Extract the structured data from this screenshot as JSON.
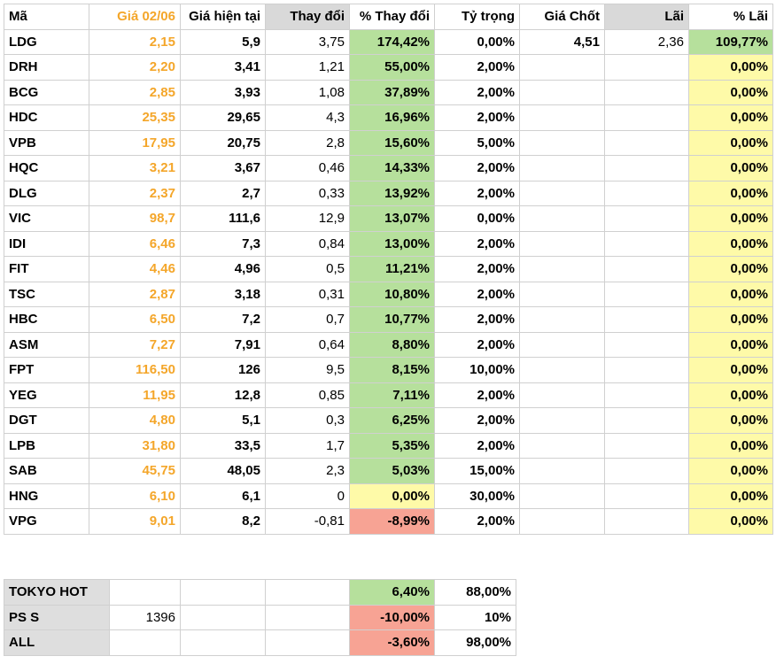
{
  "colors": {
    "orange": "#f4a62a",
    "green": "#b6e09c",
    "yellow": "#fefaa8",
    "red": "#f7a394",
    "gray": "#d9d9d9"
  },
  "headers": [
    "Mã",
    "Giá 02/06",
    "Giá hiện tại",
    "Thay đổi",
    "% Thay đổi",
    "Tỷ trọng",
    "Giá Chốt",
    "Lãi",
    "% Lãi"
  ],
  "rows": [
    {
      "ma": "LDG",
      "gia": "2,15",
      "hientai": "5,9",
      "thaydoi": "3,75",
      "pct": "174,42%",
      "tytrong": "0,00%",
      "chot": "4,51",
      "lai": "2,36",
      "pctlai": "109,77%",
      "pct_color": "green",
      "lai_color": "green"
    },
    {
      "ma": "DRH",
      "gia": "2,20",
      "hientai": "3,41",
      "thaydoi": "1,21",
      "pct": "55,00%",
      "tytrong": "2,00%",
      "chot": "",
      "lai": "",
      "pctlai": "0,00%",
      "pct_color": "green",
      "lai_color": "yellow"
    },
    {
      "ma": "BCG",
      "gia": "2,85",
      "hientai": "3,93",
      "thaydoi": "1,08",
      "pct": "37,89%",
      "tytrong": "2,00%",
      "chot": "",
      "lai": "",
      "pctlai": "0,00%",
      "pct_color": "green",
      "lai_color": "yellow"
    },
    {
      "ma": "HDC",
      "gia": "25,35",
      "hientai": "29,65",
      "thaydoi": "4,3",
      "pct": "16,96%",
      "tytrong": "2,00%",
      "chot": "",
      "lai": "",
      "pctlai": "0,00%",
      "pct_color": "green",
      "lai_color": "yellow"
    },
    {
      "ma": "VPB",
      "gia": "17,95",
      "hientai": "20,75",
      "thaydoi": "2,8",
      "pct": "15,60%",
      "tytrong": "5,00%",
      "chot": "",
      "lai": "",
      "pctlai": "0,00%",
      "pct_color": "green",
      "lai_color": "yellow"
    },
    {
      "ma": "HQC",
      "gia": "3,21",
      "hientai": "3,67",
      "thaydoi": "0,46",
      "pct": "14,33%",
      "tytrong": "2,00%",
      "chot": "",
      "lai": "",
      "pctlai": "0,00%",
      "pct_color": "green",
      "lai_color": "yellow"
    },
    {
      "ma": "DLG",
      "gia": "2,37",
      "hientai": "2,7",
      "thaydoi": "0,33",
      "pct": "13,92%",
      "tytrong": "2,00%",
      "chot": "",
      "lai": "",
      "pctlai": "0,00%",
      "pct_color": "green",
      "lai_color": "yellow"
    },
    {
      "ma": "VIC",
      "gia": "98,7",
      "hientai": "111,6",
      "thaydoi": "12,9",
      "pct": "13,07%",
      "tytrong": "0,00%",
      "chot": "",
      "lai": "",
      "pctlai": "0,00%",
      "pct_color": "green",
      "lai_color": "yellow"
    },
    {
      "ma": "IDI",
      "gia": "6,46",
      "hientai": "7,3",
      "thaydoi": "0,84",
      "pct": "13,00%",
      "tytrong": "2,00%",
      "chot": "",
      "lai": "",
      "pctlai": "0,00%",
      "pct_color": "green",
      "lai_color": "yellow"
    },
    {
      "ma": "FIT",
      "gia": "4,46",
      "hientai": "4,96",
      "thaydoi": "0,5",
      "pct": "11,21%",
      "tytrong": "2,00%",
      "chot": "",
      "lai": "",
      "pctlai": "0,00%",
      "pct_color": "green",
      "lai_color": "yellow"
    },
    {
      "ma": "TSC",
      "gia": "2,87",
      "hientai": "3,18",
      "thaydoi": "0,31",
      "pct": "10,80%",
      "tytrong": "2,00%",
      "chot": "",
      "lai": "",
      "pctlai": "0,00%",
      "pct_color": "green",
      "lai_color": "yellow"
    },
    {
      "ma": "HBC",
      "gia": "6,50",
      "hientai": "7,2",
      "thaydoi": "0,7",
      "pct": "10,77%",
      "tytrong": "2,00%",
      "chot": "",
      "lai": "",
      "pctlai": "0,00%",
      "pct_color": "green",
      "lai_color": "yellow"
    },
    {
      "ma": "ASM",
      "gia": "7,27",
      "hientai": "7,91",
      "thaydoi": "0,64",
      "pct": "8,80%",
      "tytrong": "2,00%",
      "chot": "",
      "lai": "",
      "pctlai": "0,00%",
      "pct_color": "green",
      "lai_color": "yellow"
    },
    {
      "ma": "FPT",
      "gia": "116,50",
      "hientai": "126",
      "thaydoi": "9,5",
      "pct": "8,15%",
      "tytrong": "10,00%",
      "chot": "",
      "lai": "",
      "pctlai": "0,00%",
      "pct_color": "green",
      "lai_color": "yellow"
    },
    {
      "ma": "YEG",
      "gia": "11,95",
      "hientai": "12,8",
      "thaydoi": "0,85",
      "pct": "7,11%",
      "tytrong": "2,00%",
      "chot": "",
      "lai": "",
      "pctlai": "0,00%",
      "pct_color": "green",
      "lai_color": "yellow"
    },
    {
      "ma": "DGT",
      "gia": "4,80",
      "hientai": "5,1",
      "thaydoi": "0,3",
      "pct": "6,25%",
      "tytrong": "2,00%",
      "chot": "",
      "lai": "",
      "pctlai": "0,00%",
      "pct_color": "green",
      "lai_color": "yellow"
    },
    {
      "ma": "LPB",
      "gia": "31,80",
      "hientai": "33,5",
      "thaydoi": "1,7",
      "pct": "5,35%",
      "tytrong": "2,00%",
      "chot": "",
      "lai": "",
      "pctlai": "0,00%",
      "pct_color": "green",
      "lai_color": "yellow"
    },
    {
      "ma": "SAB",
      "gia": "45,75",
      "hientai": "48,05",
      "thaydoi": "2,3",
      "pct": "5,03%",
      "tytrong": "15,00%",
      "chot": "",
      "lai": "",
      "pctlai": "0,00%",
      "pct_color": "green",
      "lai_color": "yellow"
    },
    {
      "ma": "HNG",
      "gia": "6,10",
      "hientai": "6,1",
      "thaydoi": "0",
      "pct": "0,00%",
      "tytrong": "30,00%",
      "chot": "",
      "lai": "",
      "pctlai": "0,00%",
      "pct_color": "yellow",
      "lai_color": "yellow"
    },
    {
      "ma": "VPG",
      "gia": "9,01",
      "hientai": "8,2",
      "thaydoi": "-0,81",
      "pct": "-8,99%",
      "tytrong": "2,00%",
      "chot": "",
      "lai": "",
      "pctlai": "0,00%",
      "pct_color": "red",
      "lai_color": "yellow"
    }
  ],
  "summary": [
    {
      "label": "TOKYO HOT",
      "c2": "",
      "c3": "",
      "c4": "",
      "pct": "6,40%",
      "tytrong": "88,00%",
      "pct_color": "green"
    },
    {
      "label": "PS S",
      "c2": "1396",
      "c3": "",
      "c4": "",
      "pct": "-10,00%",
      "tytrong": "10%",
      "pct_color": "red"
    },
    {
      "label": "ALL",
      "c2": "",
      "c3": "",
      "c4": "",
      "pct": "-3,60%",
      "tytrong": "98,00%",
      "pct_color": "red"
    }
  ]
}
